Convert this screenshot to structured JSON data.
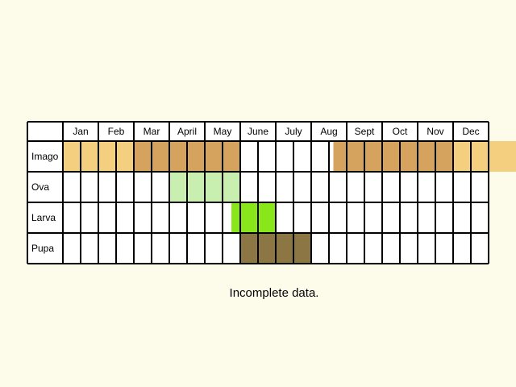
{
  "chart_data": {
    "type": "table",
    "months": [
      "Jan",
      "Feb",
      "Mar",
      "April",
      "May",
      "June",
      "July",
      "Aug",
      "Sept",
      "Oct",
      "Nov",
      "Dec"
    ],
    "weeks_per_month": 2,
    "rows": [
      {
        "label": "Imago",
        "periods": [
          {
            "from": 0,
            "to": 4,
            "color": "#f5cf80"
          },
          {
            "from": 4,
            "to": 10,
            "color": "#d6a35f"
          },
          {
            "from": 15.25,
            "to": 22,
            "color": "#d6a35f"
          },
          {
            "from": 22,
            "to": 26,
            "color": "#f5cf80"
          }
        ]
      },
      {
        "label": "Ova",
        "periods": [
          {
            "from": 6,
            "to": 10,
            "color": "#c8eeb0"
          }
        ]
      },
      {
        "label": "Larva",
        "periods": [
          {
            "from": 9.5,
            "to": 12,
            "color": "#88e61a"
          }
        ]
      },
      {
        "label": "Pupa",
        "periods": [
          {
            "from": 10,
            "to": 14,
            "color": "#8c7644"
          }
        ]
      }
    ]
  },
  "caption": "Incomplete data."
}
